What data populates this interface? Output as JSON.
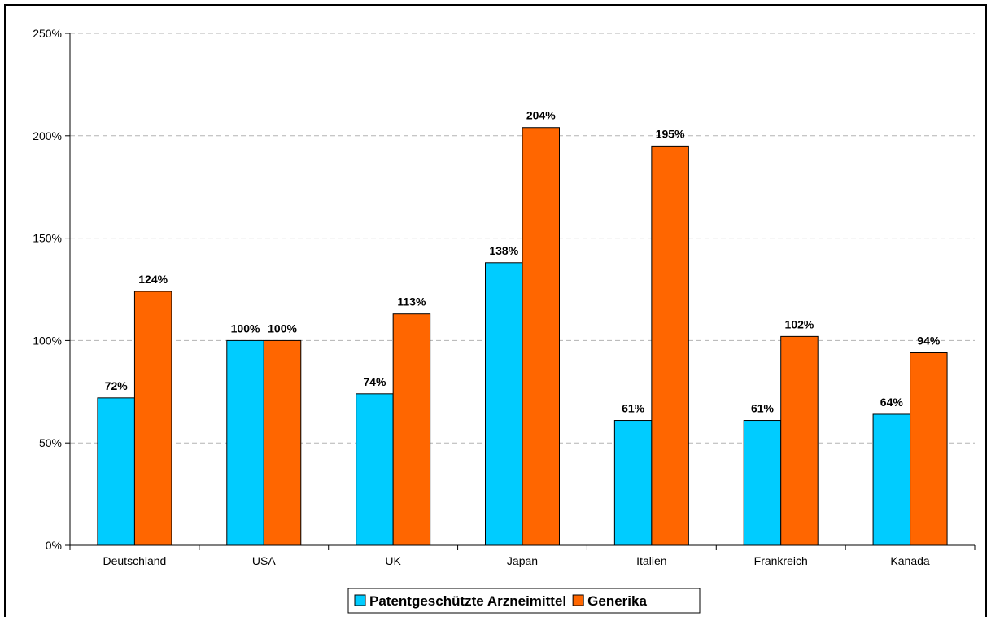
{
  "chart_data": {
    "type": "bar",
    "categories": [
      "Deutschland",
      "USA",
      "UK",
      "Japan",
      "Italien",
      "Frankreich",
      "Kanada"
    ],
    "series": [
      {
        "name": "Patentgeschützte Arzneimittel",
        "values": [
          72,
          100,
          74,
          138,
          61,
          61,
          64
        ],
        "color": "#00CCFF"
      },
      {
        "name": "Generika",
        "values": [
          124,
          100,
          113,
          204,
          195,
          102,
          94
        ],
        "color": "#FF6600"
      }
    ],
    "data_labels": [
      [
        "72%",
        "100%",
        "74%",
        "138%",
        "61%",
        "61%",
        "64%"
      ],
      [
        "124%",
        "100%",
        "113%",
        "204%",
        "195%",
        "102%",
        "94%"
      ]
    ],
    "yticks": [
      "0%",
      "50%",
      "100%",
      "150%",
      "200%",
      "250%"
    ],
    "ylim": [
      0,
      250
    ],
    "ytick_step": 50,
    "grid": true,
    "legend_position": "bottom",
    "title": "",
    "xlabel": "",
    "ylabel": ""
  }
}
